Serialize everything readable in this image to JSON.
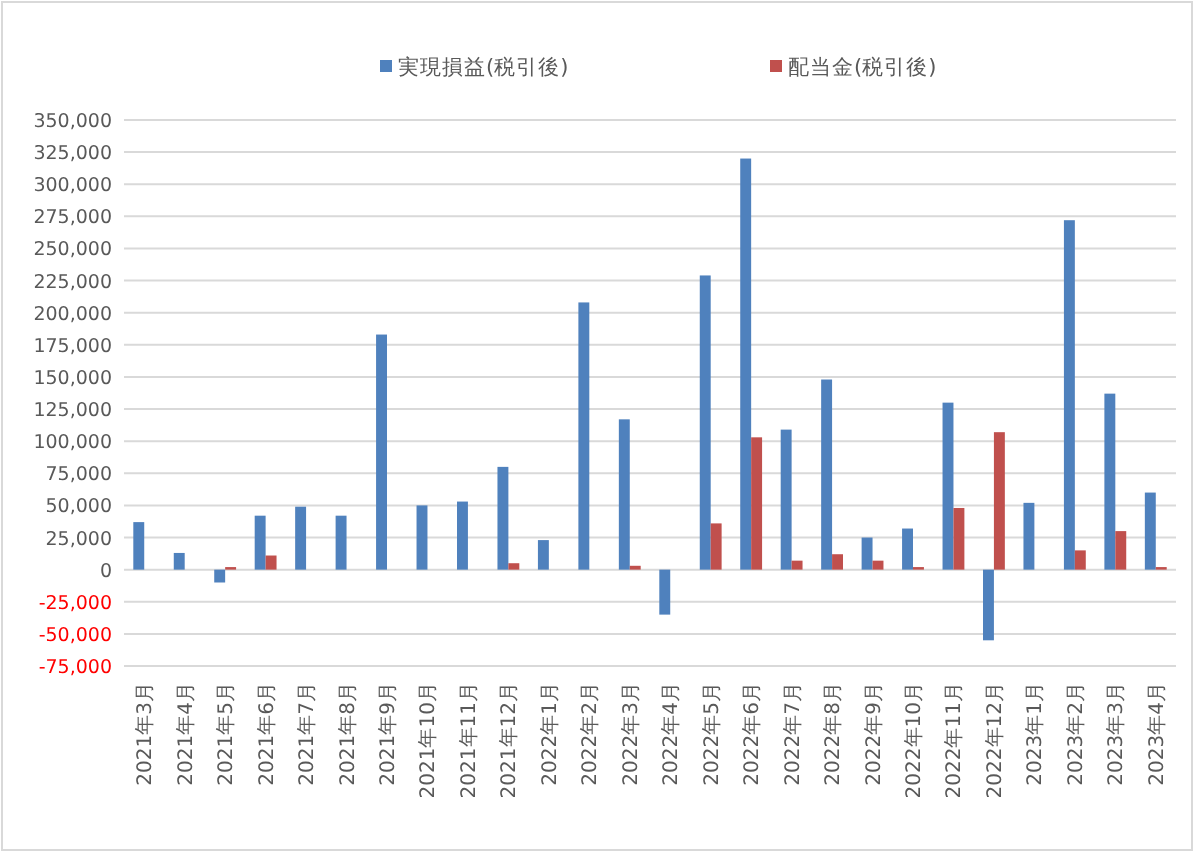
{
  "chart_data": {
    "type": "bar",
    "categories": [
      "2021年3月",
      "2021年4月",
      "2021年5月",
      "2021年6月",
      "2021年7月",
      "2021年8月",
      "2021年9月",
      "2021年10月",
      "2021年11月",
      "2021年12月",
      "2022年1月",
      "2022年2月",
      "2022年3月",
      "2022年4月",
      "2022年5月",
      "2022年6月",
      "2022年7月",
      "2022年8月",
      "2022年9月",
      "2022年10月",
      "2022年11月",
      "2022年12月",
      "2023年1月",
      "2023年2月",
      "2023年3月",
      "2023年4月"
    ],
    "series": [
      {
        "name": "実現損益(税引後)",
        "color": "#4f81bd",
        "values": [
          37000,
          13000,
          -10000,
          42000,
          49000,
          42000,
          183000,
          50000,
          53000,
          80000,
          23000,
          208000,
          117000,
          -35000,
          229000,
          320000,
          109000,
          148000,
          25000,
          32000,
          130000,
          -55000,
          52000,
          272000,
          137000,
          60000
        ]
      },
      {
        "name": "配当金(税引後)",
        "color": "#c0504d",
        "values": [
          null,
          null,
          2000,
          11000,
          null,
          null,
          null,
          null,
          null,
          5000,
          null,
          null,
          3000,
          null,
          36000,
          103000,
          7000,
          12000,
          7000,
          2000,
          48000,
          107000,
          null,
          15000,
          30000,
          2000
        ]
      }
    ],
    "ylim": [
      -75000,
      350000
    ],
    "yticks": [
      {
        "value": -75000,
        "label": "-75,000"
      },
      {
        "value": -50000,
        "label": "-50,000"
      },
      {
        "value": -25000,
        "label": "-25,000"
      },
      0,
      {
        "value": 25000,
        "label": "25,000"
      },
      {
        "value": 50000,
        "label": "50,000"
      },
      {
        "value": 75000,
        "label": "75,000"
      },
      {
        "value": 100000,
        "label": "100,000"
      },
      {
        "value": 125000,
        "label": "125,000"
      },
      {
        "value": 150000,
        "label": "150,000"
      },
      {
        "value": 175000,
        "label": "175,000"
      },
      {
        "value": 200000,
        "label": "200,000"
      },
      {
        "value": 225000,
        "label": "225,000"
      },
      {
        "value": 250000,
        "label": "250,000"
      },
      {
        "value": 275000,
        "label": "275,000"
      },
      {
        "value": 300000,
        "label": "300,000"
      },
      {
        "value": 325000,
        "label": "325,000"
      },
      {
        "value": 350000,
        "label": "350,000"
      }
    ],
    "grid": "y",
    "legend": "top"
  }
}
